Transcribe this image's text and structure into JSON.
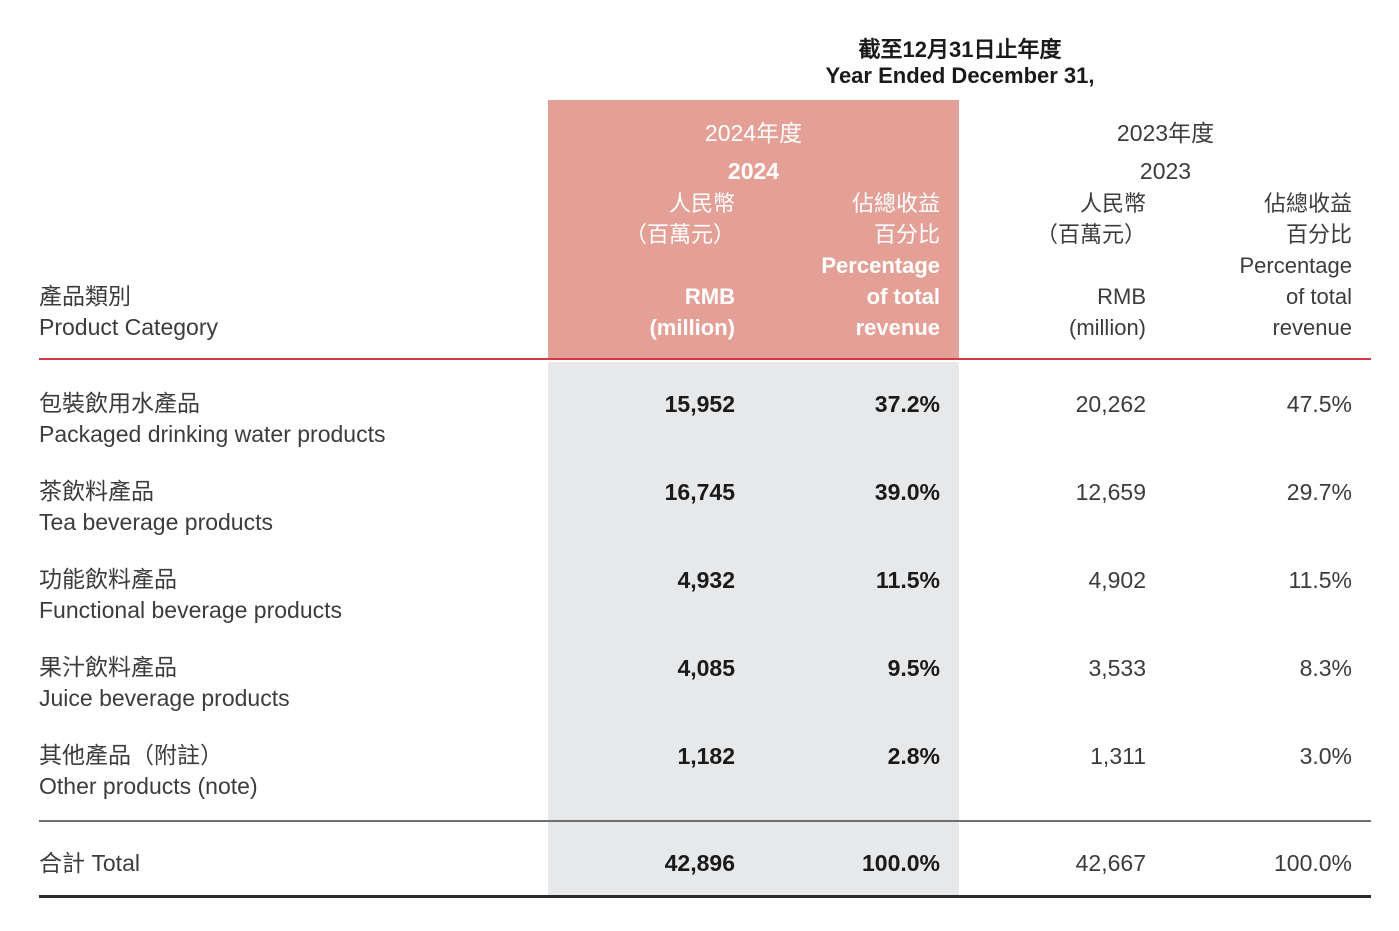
{
  "header": {
    "period_zh": "截至12月31日止年度",
    "period_en": "Year Ended December 31,",
    "y2024": {
      "label_zh": "2024年度",
      "label_en": "2024",
      "rmb_zh_1": "人民幣",
      "rmb_zh_2": "（百萬元）",
      "rmb_en_1": "RMB",
      "rmb_en_2": "(million)",
      "pct_zh_1": "佔總收益",
      "pct_zh_2": "百分比",
      "pct_en_1": "Percentage",
      "pct_en_2": "of total",
      "pct_en_3": "revenue"
    },
    "y2023": {
      "label_zh": "2023年度",
      "label_en": "2023",
      "rmb_zh_1": "人民幣",
      "rmb_zh_2": "（百萬元）",
      "rmb_en_1": "RMB",
      "rmb_en_2": "(million)",
      "pct_zh_1": "佔總收益",
      "pct_zh_2": "百分比",
      "pct_en_1": "Percentage",
      "pct_en_2": "of total",
      "pct_en_3": "revenue"
    },
    "category_zh": "產品類別",
    "category_en": "Product Category"
  },
  "rows": [
    {
      "zh": "包裝飲用水產品",
      "en": "Packaged drinking water products",
      "rmb_2024": "15,952",
      "pct_2024": "37.2%",
      "rmb_2023": "20,262",
      "pct_2023": "47.5%"
    },
    {
      "zh": "茶飲料產品",
      "en": "Tea beverage products",
      "rmb_2024": "16,745",
      "pct_2024": "39.0%",
      "rmb_2023": "12,659",
      "pct_2023": "29.7%"
    },
    {
      "zh": "功能飲料產品",
      "en": "Functional beverage products",
      "rmb_2024": "4,932",
      "pct_2024": "11.5%",
      "rmb_2023": "4,902",
      "pct_2023": "11.5%"
    },
    {
      "zh": "果汁飲料產品",
      "en": "Juice beverage products",
      "rmb_2024": "4,085",
      "pct_2024": "9.5%",
      "rmb_2023": "3,533",
      "pct_2023": "8.3%"
    },
    {
      "zh": "其他產品（附註）",
      "en": "Other products (note)",
      "rmb_2024": "1,182",
      "pct_2024": "2.8%",
      "rmb_2023": "1,311",
      "pct_2023": "3.0%"
    }
  ],
  "total": {
    "label": "合計 Total",
    "rmb_2024": "42,896",
    "pct_2024": "100.0%",
    "rmb_2023": "42,667",
    "pct_2023": "100.0%"
  },
  "colors": {
    "highlight_header": "#e4a097",
    "highlight_body": "#e6e8ea",
    "header_rule": "#d03a45"
  }
}
